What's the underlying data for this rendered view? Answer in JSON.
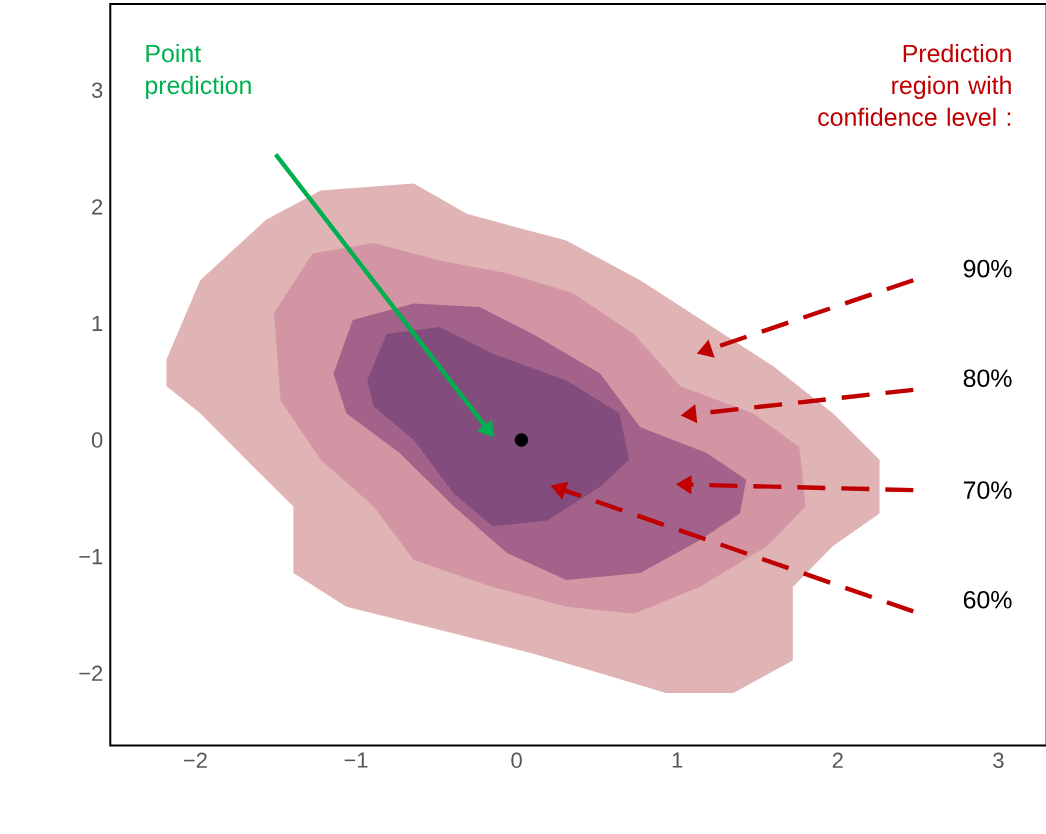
{
  "chart_data": {
    "type": "area",
    "xlim": [
      -2.53,
      3.3
    ],
    "ylim": [
      -2.62,
      3.74
    ],
    "xticks": [
      {
        "value": -2,
        "label": "−2"
      },
      {
        "value": -1,
        "label": "−1"
      },
      0,
      1,
      2,
      3
    ],
    "yticks": [
      {
        "value": -2,
        "label": "−2"
      },
      {
        "value": -1,
        "label": "−1"
      },
      0,
      1,
      2,
      3
    ],
    "annotations": [
      "Point prediction",
      "Prediction region with confidence level :",
      "90%",
      "80%",
      "70%",
      "60%"
    ],
    "series": [
      {
        "color": "#e0b4b5",
        "x": [
          -2.18,
          -1.97,
          -1.56,
          -1.22,
          -0.64,
          -0.31,
          0.31,
          0.77,
          1.22,
          1.6,
          1.97,
          2.26,
          2.26,
          1.97,
          1.72,
          1.72,
          1.35,
          0.93,
          0.52,
          0.1,
          -0.39,
          -1.06,
          -1.39,
          -1.39,
          -1.64,
          -1.97,
          -2.18
        ],
        "values": [
          0.69,
          1.37,
          1.89,
          2.14,
          2.2,
          1.94,
          1.71,
          1.37,
          0.97,
          0.63,
          0.23,
          -0.17,
          -0.63,
          -0.91,
          -1.26,
          -1.89,
          -2.17,
          -2.17,
          -2.0,
          -1.83,
          -1.66,
          -1.43,
          -1.14,
          -0.57,
          -0.23,
          0.23,
          0.46
        ]
      },
      {
        "color": "#d395a3",
        "x": [
          -1.51,
          -1.27,
          -0.89,
          -0.48,
          -0.06,
          0.35,
          0.73,
          1.02,
          1.47,
          1.76,
          1.8,
          1.56,
          1.14,
          0.73,
          0.31,
          -0.15,
          -0.64,
          -0.89,
          -1.22,
          -1.47
        ],
        "values": [
          1.09,
          1.6,
          1.69,
          1.54,
          1.43,
          1.26,
          0.91,
          0.46,
          0.23,
          -0.06,
          -0.57,
          -0.91,
          -1.26,
          -1.49,
          -1.43,
          -1.26,
          -1.03,
          -0.57,
          -0.17,
          0.34
        ]
      },
      {
        "color": "#a3628a",
        "x": [
          -1.14,
          -1.02,
          -0.64,
          -0.23,
          0.1,
          0.52,
          0.77,
          1.18,
          1.43,
          1.39,
          1.14,
          0.77,
          0.31,
          -0.06,
          -0.39,
          -0.73,
          -1.06
        ],
        "values": [
          0.57,
          1.03,
          1.17,
          1.14,
          0.91,
          0.57,
          0.11,
          -0.11,
          -0.34,
          -0.63,
          -0.86,
          -1.14,
          -1.2,
          -0.97,
          -0.57,
          -0.11,
          0.23
        ]
      },
      {
        "color": "#824c7d",
        "x": [
          -0.93,
          -0.81,
          -0.48,
          -0.15,
          0.31,
          0.64,
          0.7,
          0.52,
          0.19,
          -0.15,
          -0.39,
          -0.64,
          -0.89
        ],
        "values": [
          0.51,
          0.91,
          0.97,
          0.74,
          0.51,
          0.23,
          -0.17,
          -0.4,
          -0.69,
          -0.74,
          -0.46,
          0,
          0.29
        ]
      },
      {
        "type": "scatter",
        "color": "#000000",
        "x": [
          0.03
        ],
        "values": [
          0
        ]
      }
    ]
  }
}
